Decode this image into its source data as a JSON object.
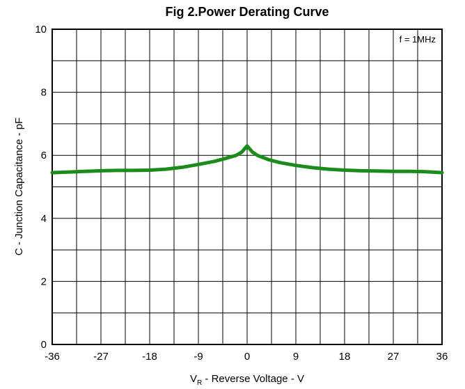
{
  "chart_data": {
    "type": "line",
    "title": "Fig 2.Power Derating Curve",
    "xlabel_main": "V",
    "xlabel_sub": "R",
    "xlabel_rest": " - Reverse Voltage - V",
    "ylabel": "C - Junction Capacitance - pF",
    "annotation": "f = 1MHz",
    "xlim": [
      -36,
      36
    ],
    "ylim": [
      0,
      10
    ],
    "grid": true,
    "x_ticks": [
      -36,
      -27,
      -18,
      -9,
      0,
      9,
      18,
      27,
      36
    ],
    "y_ticks": [
      0,
      2,
      4,
      6,
      8,
      10
    ],
    "series": [
      {
        "color": "#1a8c1a",
        "x": [
          -36,
          -33,
          -30,
          -27,
          -24,
          -21,
          -18,
          -15,
          -12,
          -9,
          -6,
          -4,
          -2,
          -1,
          -0.5,
          0,
          0.5,
          1,
          2,
          4,
          6,
          9,
          12,
          15,
          18,
          21,
          24,
          27,
          30,
          33,
          36
        ],
        "y": [
          5.45,
          5.47,
          5.49,
          5.51,
          5.52,
          5.52,
          5.53,
          5.56,
          5.62,
          5.71,
          5.81,
          5.9,
          6.0,
          6.1,
          6.2,
          6.3,
          6.2,
          6.1,
          5.99,
          5.86,
          5.77,
          5.68,
          5.61,
          5.56,
          5.53,
          5.51,
          5.5,
          5.49,
          5.49,
          5.48,
          5.45
        ]
      }
    ]
  }
}
